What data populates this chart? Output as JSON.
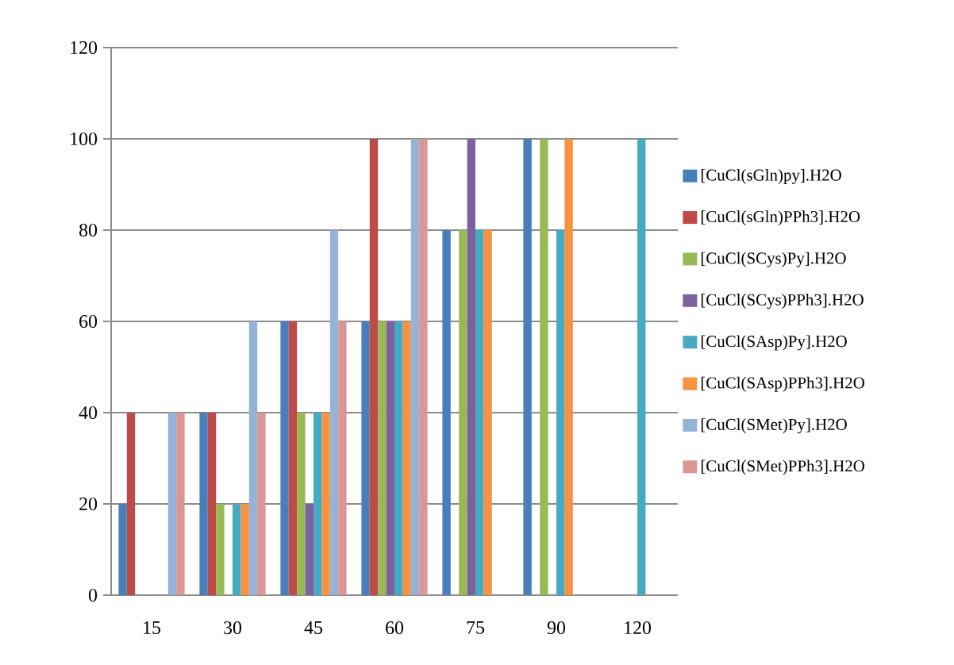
{
  "chart_data": {
    "type": "bar",
    "categories": [
      "15",
      "30",
      "45",
      "60",
      "75",
      "90",
      "120"
    ],
    "series": [
      {
        "name": "[CuCl(sGln)py].H2O",
        "color": "#4a7ebb",
        "values": [
          20,
          40,
          60,
          60,
          80,
          100,
          0
        ]
      },
      {
        "name": "[CuCl(sGln)PPh3].H2O",
        "color": "#be4b48",
        "values": [
          40,
          40,
          60,
          100,
          0,
          0,
          0
        ]
      },
      {
        "name": "[CuCl(SCys)Py].H2O",
        "color": "#98b954",
        "values": [
          0,
          20,
          40,
          60,
          80,
          100,
          0
        ]
      },
      {
        "name": "[CuCl(SCys)PPh3].H2O",
        "color": "#7d60a0",
        "values": [
          0,
          0,
          20,
          60,
          100,
          0,
          0
        ]
      },
      {
        "name": "[CuCl(SAsp)Py].H2O",
        "color": "#46aac5",
        "values": [
          0,
          20,
          40,
          60,
          80,
          80,
          100
        ]
      },
      {
        "name": "[CuCl(SAsp)PPh3].H2O",
        "color": "#f69240",
        "values": [
          0,
          20,
          40,
          60,
          80,
          100,
          0
        ]
      },
      {
        "name": "[CuCl(SMet)Py].H2O",
        "color": "#95b3d7",
        "values": [
          40,
          60,
          80,
          100,
          0,
          0,
          0
        ]
      },
      {
        "name": "[CuCl(SMet)PPh3].H2O",
        "color": "#d99694",
        "values": [
          40,
          40,
          60,
          100,
          0,
          0,
          0
        ]
      }
    ],
    "ylim": [
      0,
      120
    ],
    "yticks": [
      0,
      20,
      40,
      60,
      80,
      100,
      120
    ],
    "grid": "y",
    "legend": "right"
  }
}
